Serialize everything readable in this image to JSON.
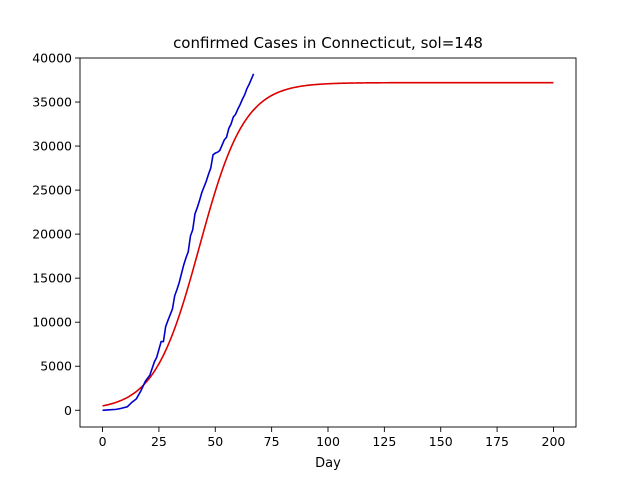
{
  "chart_data": {
    "type": "line",
    "title": "confirmed Cases in Connecticut, sol=148",
    "xlabel": "Day",
    "ylabel": "",
    "xlim": [
      -10,
      210
    ],
    "ylim": [
      -1900,
      40000
    ],
    "xticks": [
      0,
      25,
      50,
      75,
      100,
      125,
      150,
      175,
      200
    ],
    "yticks": [
      0,
      5000,
      10000,
      15000,
      20000,
      25000,
      30000,
      35000,
      40000
    ],
    "grid": false,
    "series": [
      {
        "color": "#0000cc",
        "x": [
          0,
          3,
          6,
          8,
          11,
          13,
          15,
          17,
          19,
          21,
          23,
          24,
          26,
          27,
          28,
          29,
          31,
          32,
          33,
          34,
          35,
          36,
          37,
          38,
          39,
          40,
          41,
          42,
          43,
          44,
          46,
          47,
          48,
          49,
          50,
          51,
          52,
          54,
          55,
          56,
          57,
          58,
          59,
          60,
          61,
          62,
          63,
          64,
          65,
          66,
          67
        ],
        "y": [
          0,
          50,
          100,
          200,
          400,
          900,
          1300,
          2200,
          3300,
          4000,
          5500,
          6000,
          7800,
          7800,
          9500,
          10200,
          11500,
          13000,
          13700,
          14500,
          15500,
          16500,
          17300,
          18000,
          19800,
          20500,
          22300,
          23000,
          23800,
          24700,
          26000,
          26800,
          27500,
          29000,
          29200,
          29300,
          29500,
          30700,
          31000,
          32000,
          32500,
          33300,
          33600,
          34200,
          34700,
          35300,
          35800,
          36500,
          37000,
          37600,
          38200
        ]
      },
      {
        "color": "#dd0000",
        "fit": {
          "L": 37200,
          "k": 0.1,
          "x0": 43
        },
        "x": [
          0,
          200
        ]
      }
    ]
  }
}
